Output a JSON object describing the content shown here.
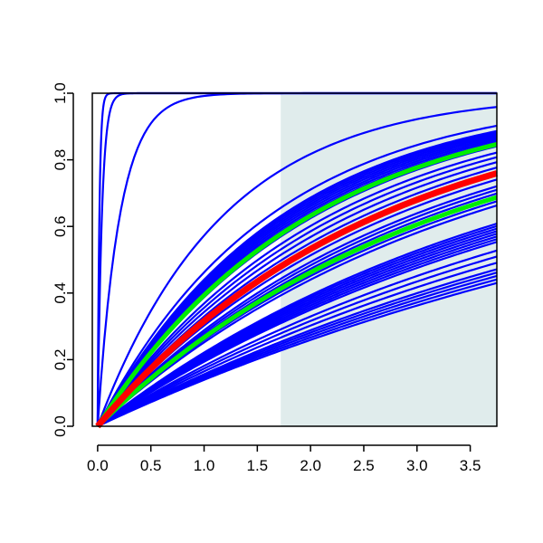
{
  "chart_data": {
    "type": "line",
    "title": "",
    "xlabel": "",
    "ylabel": "",
    "xlim": [
      -0.05,
      3.75
    ],
    "ylim": [
      0,
      1
    ],
    "x_ticks": [
      0.0,
      0.5,
      1.0,
      1.5,
      2.0,
      2.5,
      3.0,
      3.5
    ],
    "x_tick_labels": [
      "0.0",
      "0.5",
      "1.0",
      "1.5",
      "2.0",
      "2.5",
      "3.0",
      "3.5"
    ],
    "y_ticks": [
      0.0,
      0.2,
      0.4,
      0.6,
      0.8,
      1.0
    ],
    "y_tick_labels": [
      "0.0",
      "0.2",
      "0.4",
      "0.6",
      "0.8",
      "1.0"
    ],
    "grid": false,
    "legend": "none",
    "shaded_region": {
      "x_from": 1.72,
      "x_to": 3.75,
      "color": "#e0ecec"
    },
    "curve_family": "y = 1 - exp(-rate * x)",
    "blue_curve_rates": [
      60,
      25,
      4.8,
      0.85,
      0.62,
      0.58,
      0.57,
      0.56,
      0.55,
      0.54,
      0.53,
      0.52,
      0.51,
      0.5,
      0.49,
      0.46,
      0.44,
      0.42,
      0.4,
      0.38,
      0.36,
      0.34,
      0.33,
      0.32,
      0.31,
      0.3,
      0.29,
      0.25,
      0.245,
      0.24,
      0.235,
      0.23,
      0.225,
      0.22,
      0.215,
      0.2,
      0.19,
      0.18,
      0.17,
      0.165,
      0.16,
      0.155,
      0.15
    ],
    "highlight_series": [
      {
        "rate": 0.5,
        "color": "#00ee00",
        "width": 5
      },
      {
        "rate": 0.31,
        "color": "#00ee00",
        "width": 5
      },
      {
        "rate": 0.38,
        "color": "#ff0000",
        "width": 7
      }
    ],
    "colors": {
      "lines": "#0000ff",
      "highlight_green": "#00ee00",
      "highlight_red": "#ff0000",
      "axis": "#000000",
      "background": "#ffffff"
    }
  }
}
